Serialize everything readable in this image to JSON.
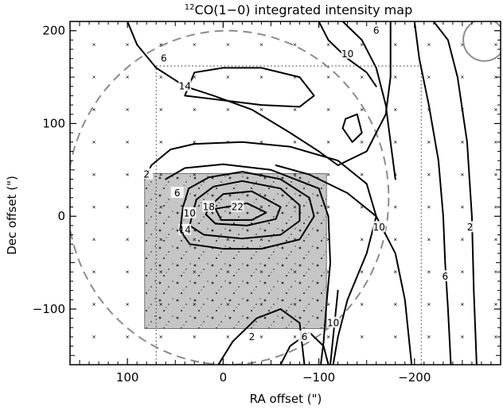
{
  "chart_data": {
    "type": "contour",
    "title": {
      "prefix_superscript": "12",
      "text": "CO(1−0) integrated intensity map"
    },
    "xlabel": "RA offset (\")",
    "ylabel": "Dec offset (\")",
    "xlim": [
      160,
      -290
    ],
    "ylim": [
      -160,
      210
    ],
    "x_ticks": [
      {
        "value": 100,
        "label": "100"
      },
      {
        "value": 0,
        "label": "0"
      },
      {
        "value": -100,
        "label": "−100"
      },
      {
        "value": -200,
        "label": "−200"
      }
    ],
    "y_ticks": [
      {
        "value": 200,
        "label": "200"
      },
      {
        "value": 100,
        "label": "100"
      },
      {
        "value": 0,
        "label": "0"
      },
      {
        "value": -100,
        "label": "−100"
      }
    ],
    "sample_grid": {
      "x": [
        135,
        100,
        65,
        30,
        -5,
        -40,
        -75,
        -110,
        -145,
        -180,
        -215,
        -250,
        -285
      ],
      "y": [
        185,
        150,
        115,
        80,
        45,
        10,
        -25,
        -60,
        -95,
        -130
      ]
    },
    "optical_image_extent": {
      "x": [
        82,
        -108
      ],
      "y": [
        -121,
        46
      ]
    },
    "dotted_box": {
      "x": [
        70,
        -207
      ],
      "y": [
        -160,
        162
      ]
    },
    "primary_beam": {
      "center": [
        -5,
        20
      ],
      "radius_x": 168,
      "radius_y": 180
    },
    "beam_circle": {
      "center": [
        -273,
        190
      ],
      "radius": 22
    },
    "contours": [
      {
        "level": "22",
        "label": "22",
        "label_pos": [
          -15,
          10
        ],
        "points": [
          [
            8,
            8
          ],
          [
            -25,
            14
          ],
          [
            -45,
            4
          ],
          [
            -30,
            -4
          ],
          [
            2,
            -4
          ],
          [
            8,
            8
          ]
        ]
      },
      {
        "level": "18",
        "label": "18",
        "label_pos": [
          15,
          10
        ],
        "points": [
          [
            15,
            10
          ],
          [
            0,
            24
          ],
          [
            -30,
            27
          ],
          [
            -60,
            10
          ],
          [
            -55,
            -3
          ],
          [
            -25,
            -10
          ],
          [
            8,
            -8
          ],
          [
            18,
            2
          ],
          [
            15,
            10
          ]
        ]
      },
      {
        "level": "14",
        "label": "14",
        "label_pos": [
          40,
          -15
        ],
        "points": [
          [
            28,
            18
          ],
          [
            10,
            32
          ],
          [
            -20,
            38
          ],
          [
            -60,
            30
          ],
          [
            -80,
            12
          ],
          [
            -80,
            -5
          ],
          [
            -60,
            -20
          ],
          [
            -20,
            -24
          ],
          [
            20,
            -20
          ],
          [
            35,
            -10
          ],
          [
            28,
            18
          ]
        ]
      },
      {
        "level": "10",
        "label": "10",
        "label_pos": [
          35,
          3
        ],
        "points": [
          [
            36,
            30
          ],
          [
            15,
            42
          ],
          [
            -20,
            48
          ],
          [
            -60,
            40
          ],
          [
            -90,
            20
          ],
          [
            -95,
            0
          ],
          [
            -80,
            -25
          ],
          [
            -40,
            -35
          ],
          [
            0,
            -35
          ],
          [
            35,
            -30
          ],
          [
            45,
            -15
          ],
          [
            42,
            10
          ],
          [
            36,
            30
          ]
        ]
      },
      {
        "level": "6",
        "label": "6",
        "label_pos": [
          48,
          25
        ],
        "points": [
          [
            60,
            40
          ],
          [
            40,
            52
          ],
          [
            0,
            56
          ],
          [
            -50,
            50
          ],
          [
            -100,
            30
          ],
          [
            -110,
            0
          ],
          [
            -112,
            -50
          ],
          [
            -108,
            -95
          ],
          [
            -105,
            -135
          ],
          [
            -102,
            -160
          ]
        ]
      },
      {
        "level": "2",
        "label": "2",
        "label_pos": [
          80,
          45
        ],
        "points": [
          [
            82,
            40
          ],
          [
            75,
            55
          ],
          [
            55,
            72
          ],
          [
            30,
            78
          ],
          [
            -20,
            80
          ],
          [
            -70,
            75
          ],
          [
            -120,
            60
          ],
          [
            -150,
            35
          ],
          [
            -160,
            0
          ],
          [
            -150,
            -40
          ],
          [
            -130,
            -90
          ],
          [
            -120,
            -130
          ],
          [
            -115,
            -160
          ]
        ]
      },
      {
        "level": "2",
        "label": "2",
        "label_pos": [
          -30,
          -130
        ],
        "points": [
          [
            5,
            -160
          ],
          [
            -10,
            -135
          ],
          [
            -35,
            -110
          ],
          [
            -60,
            -100
          ],
          [
            -80,
            -115
          ],
          [
            -85,
            -160
          ]
        ]
      },
      {
        "level": "6",
        "label": "6",
        "label_pos": [
          -85,
          -130
        ],
        "points": [
          [
            -60,
            -160
          ],
          [
            -70,
            -140
          ],
          [
            -90,
            -125
          ],
          [
            -105,
            -140
          ],
          [
            -110,
            -160
          ]
        ]
      },
      {
        "level": "10",
        "label": "10",
        "label_pos": [
          -115,
          -115
        ],
        "points": [
          [
            -112,
            -160
          ],
          [
            -116,
            -120
          ],
          [
            -120,
            -80
          ]
        ]
      },
      {
        "level": "10",
        "label": "10",
        "label_pos": [
          -163,
          -12
        ],
        "points": [
          [
            -55,
            55
          ],
          [
            -90,
            45
          ],
          [
            -130,
            25
          ],
          [
            -160,
            0
          ],
          [
            -180,
            -40
          ],
          [
            -190,
            -90
          ],
          [
            -195,
            -140
          ],
          [
            -197,
            -160
          ]
        ]
      },
      {
        "level": "6",
        "label": "6",
        "label_pos": [
          -232,
          -65
        ],
        "points": [
          [
            -200,
            210
          ],
          [
            -205,
            170
          ],
          [
            -215,
            120
          ],
          [
            -225,
            60
          ],
          [
            -230,
            0
          ],
          [
            -232,
            -50
          ],
          [
            -235,
            -100
          ],
          [
            -238,
            -160
          ]
        ]
      },
      {
        "level": "2",
        "label": "2",
        "label_pos": [
          -258,
          -12
        ],
        "points": [
          [
            -220,
            210
          ],
          [
            -235,
            190
          ],
          [
            -245,
            150
          ],
          [
            -255,
            80
          ],
          [
            -260,
            0
          ],
          [
            -262,
            -80
          ],
          [
            -265,
            -160
          ]
        ]
      },
      {
        "level": "6",
        "label": "6",
        "label_pos": [
          -160,
          200
        ],
        "points": [
          [
            -125,
            210
          ],
          [
            -145,
            190
          ],
          [
            -160,
            160
          ],
          [
            -170,
            120
          ],
          [
            -175,
            80
          ],
          [
            -180,
            40
          ]
        ]
      },
      {
        "level": "6",
        "label": "6",
        "label_pos": [
          62,
          170
        ],
        "points": [
          [
            100,
            210
          ],
          [
            90,
            185
          ],
          [
            70,
            160
          ],
          [
            40,
            140
          ],
          [
            10,
            130
          ],
          [
            -30,
            115
          ],
          [
            -70,
            90
          ],
          [
            -100,
            70
          ],
          [
            -120,
            55
          ],
          [
            -150,
            70
          ],
          [
            -170,
            110
          ],
          [
            -175,
            150
          ],
          [
            -175,
            200
          ],
          [
            -175,
            210
          ]
        ]
      },
      {
        "level": "10",
        "label": "10",
        "label_pos": [
          -130,
          175
        ],
        "points": [
          [
            -100,
            210
          ],
          [
            -110,
            190
          ],
          [
            -130,
            170
          ],
          [
            -150,
            155
          ],
          [
            -160,
            140
          ]
        ]
      },
      {
        "level": "14",
        "label": "14",
        "label_pos": [
          40,
          140
        ],
        "points": [
          [
            40,
            130
          ],
          [
            30,
            155
          ],
          [
            0,
            160
          ],
          [
            -40,
            160
          ],
          [
            -80,
            150
          ],
          [
            -95,
            130
          ],
          [
            -80,
            118
          ],
          [
            -40,
            120
          ],
          [
            0,
            125
          ],
          [
            40,
            130
          ]
        ]
      },
      {
        "level": "14",
        "label": "",
        "label_pos": null,
        "points": [
          [
            -125,
            95
          ],
          [
            -135,
            80
          ],
          [
            -145,
            90
          ],
          [
            -140,
            110
          ],
          [
            -128,
            105
          ],
          [
            -125,
            95
          ]
        ]
      }
    ]
  }
}
